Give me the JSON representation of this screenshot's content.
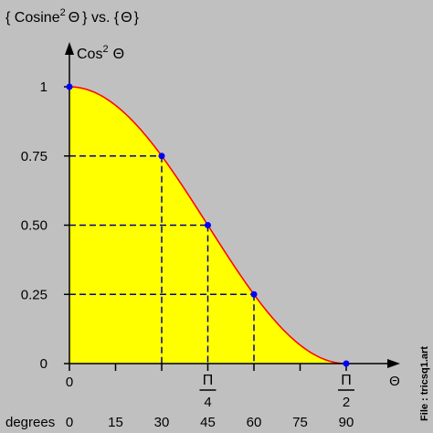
{
  "chart_data": {
    "type": "area",
    "title": {
      "open": "{ Cosine",
      "sup": "2",
      "theta": "Θ",
      "close": "}  vs.  {",
      "theta2": "Θ",
      "end": "}"
    },
    "ylabel": {
      "text": "Cos",
      "sup": "2",
      "theta": "Θ"
    },
    "xlabel": "Θ",
    "xlim": [
      0,
      90
    ],
    "ylim": [
      0,
      1
    ],
    "x_unit": "degrees",
    "y_ticks": [
      {
        "value": 0,
        "label": "0"
      },
      {
        "value": 0.25,
        "label": "0.25"
      },
      {
        "value": 0.5,
        "label": "0.50"
      },
      {
        "value": 0.75,
        "label": "0.75"
      },
      {
        "value": 1,
        "label": "1"
      }
    ],
    "x_ticks": [
      0,
      15,
      30,
      45,
      60,
      75,
      90
    ],
    "x_radian_labels": [
      {
        "x": 0,
        "text": "0"
      },
      {
        "x": 45,
        "num": "Π",
        "den": "4"
      },
      {
        "x": 90,
        "num": "Π",
        "den": "2"
      }
    ],
    "degrees_label": "degrees",
    "degree_labels": [
      {
        "x": 0,
        "text": "0"
      },
      {
        "x": 15,
        "text": "15"
      },
      {
        "x": 30,
        "text": "30"
      },
      {
        "x": 45,
        "text": "45"
      },
      {
        "x": 60,
        "text": "60"
      },
      {
        "x": 75,
        "text": "75"
      },
      {
        "x": 90,
        "text": "90"
      }
    ],
    "series": [
      {
        "function": "cos^2(theta)",
        "x": [
          0,
          30,
          45,
          60,
          90
        ],
        "y": [
          1,
          0.75,
          0.5,
          0.25,
          0
        ]
      }
    ],
    "points": [
      {
        "x": 0,
        "y": 1
      },
      {
        "x": 30,
        "y": 0.75
      },
      {
        "x": 45,
        "y": 0.5
      },
      {
        "x": 60,
        "y": 0.25
      },
      {
        "x": 90,
        "y": 0
      }
    ],
    "guide_lines": [
      {
        "x": 30,
        "y": 0.75
      },
      {
        "x": 45,
        "y": 0.5
      },
      {
        "x": 60,
        "y": 0.25
      }
    ],
    "colors": {
      "background": "#c0c0c0",
      "fill": "#ffff00",
      "curve": "#ff0000",
      "points": "#0000ff",
      "guides": "#000099",
      "axes": "#000000"
    }
  },
  "file_label": "File : tricsq1.art"
}
